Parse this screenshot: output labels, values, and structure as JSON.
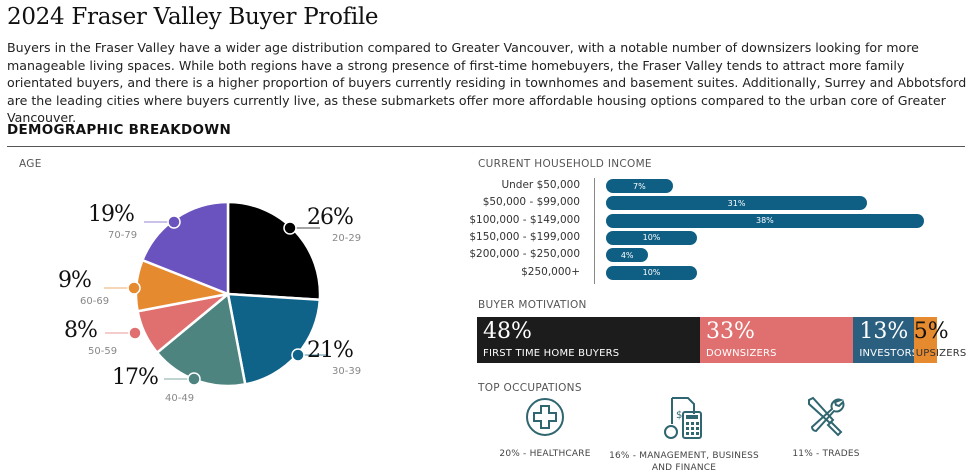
{
  "title": "2024 Fraser Valley Buyer Profile",
  "intro": "Buyers in the Fraser Valley have a wider age distribution compared to Greater Vancouver, with a notable number of downsizers looking for more manageable living spaces. While both regions have a strong presence of first-time homebuyers, the Fraser Valley tends to attract more family orientated buyers, and there is a higher proportion of buyers currently residing in townhomes and basement suites. Additionally, Surrey and Abbotsford are the leading cities where buyers currently live, as these submarkets offer more affordable housing options compared to the urban core of Greater Vancouver.",
  "section": "DEMOGRAPHIC BREAKDOWN",
  "chart_data": [
    {
      "type": "pie",
      "title": "AGE",
      "categories": [
        "20-29",
        "30-39",
        "40-49",
        "50-59",
        "60-69",
        "70-79"
      ],
      "values": [
        26,
        21,
        17,
        8,
        9,
        19
      ],
      "labels": [
        "26%",
        "21%",
        "17%",
        "8%",
        "9%",
        "19%"
      ],
      "colors": [
        "#000000",
        "#0f6389",
        "#4e8480",
        "#e07070",
        "#e68a30",
        "#6a52bf"
      ]
    },
    {
      "type": "bar",
      "orientation": "horizontal",
      "title": "CURRENT HOUSEHOLD INCOME",
      "categories": [
        "Under $50,000",
        "$50,000 - $99,000",
        "$100,000 - $149,000",
        "$150,000 - $199,000",
        "$200,000 - $250,000",
        "$250,000+"
      ],
      "values": [
        7,
        31,
        38,
        10,
        4,
        10
      ],
      "labels": [
        "7%",
        "31%",
        "38%",
        "10%",
        "4%",
        "10%"
      ],
      "color": "#0f5f85"
    },
    {
      "type": "bar",
      "orientation": "stacked",
      "title": "BUYER MOTIVATION",
      "categories": [
        "FIRST TIME HOME BUYERS",
        "DOWNSIZERS",
        "INVESTORS",
        "UPSIZERS"
      ],
      "values": [
        48,
        33,
        13,
        5
      ],
      "labels": [
        "48%",
        "33%",
        "13%",
        "5%"
      ],
      "colors": [
        "#1c1c1c",
        "#e07070",
        "#2a5f80",
        "#e68a30"
      ]
    }
  ],
  "occupations": {
    "title": "TOP OCCUPATIONS",
    "items": [
      {
        "icon": "medical-cross-icon",
        "label": "20% - HEALTHCARE"
      },
      {
        "icon": "calculator-finance-icon",
        "label": "16% - MANAGEMENT, BUSINESS AND FINANCE"
      },
      {
        "icon": "wrench-screwdriver-icon",
        "label": "11% - TRADES"
      }
    ]
  },
  "accent": "#2f6670"
}
